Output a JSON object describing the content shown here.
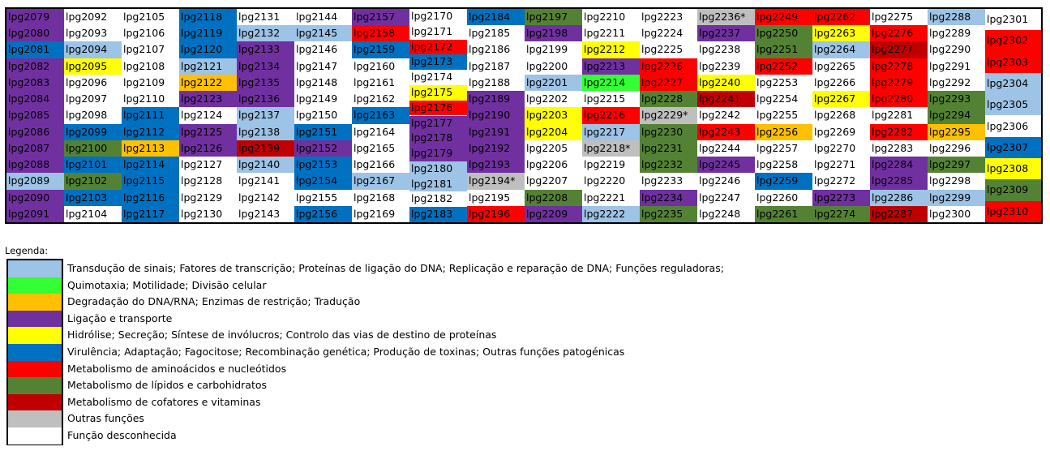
{
  "colors": {
    "sig": "#9dc3e6",
    "mot": "#33ff33",
    "deg": "#ffc000",
    "lig": "#7030a0",
    "hid": "#ffff00",
    "vir": "#0070c0",
    "ami": "#ff0000",
    "lip": "#548235",
    "cof": "#c00000",
    "out": "#bfbfbf",
    "des": "#ffffff"
  },
  "columns": [
    [
      [
        "lpg2079",
        "lig"
      ],
      [
        "lpg2080",
        "lig"
      ],
      [
        "lpg2081",
        "vir"
      ],
      [
        "lpg2082",
        "lig"
      ],
      [
        "lpg2083",
        "lig"
      ],
      [
        "lpg2084",
        "lig"
      ],
      [
        "lpg2085",
        "lig"
      ],
      [
        "lpg2086",
        "lig"
      ],
      [
        "lpg2087",
        "lig"
      ],
      [
        "lpg2088",
        "lig"
      ],
      [
        "lpg2089",
        "sig"
      ],
      [
        "lpg2090",
        "lig"
      ],
      [
        "lpg2091",
        "lig"
      ]
    ],
    [
      [
        "lpg2092",
        "des"
      ],
      [
        "lpg2093",
        "des"
      ],
      [
        "lpg2094",
        "sig"
      ],
      [
        "lpg2095",
        "hid"
      ],
      [
        "lpg2096",
        "des"
      ],
      [
        "lpg2097",
        "des"
      ],
      [
        "lpg2098",
        "des"
      ],
      [
        "lpg2099",
        "vir"
      ],
      [
        "lpg2100",
        "lip"
      ],
      [
        "lpg2101",
        "vir"
      ],
      [
        "lpg2102",
        "lip"
      ],
      [
        "lpg2103",
        "vir"
      ],
      [
        "lpg2104",
        "des"
      ]
    ],
    [
      [
        "lpg2105",
        "des"
      ],
      [
        "lpg2106",
        "des"
      ],
      [
        "lpg2107",
        "des"
      ],
      [
        "lpg2108",
        "des"
      ],
      [
        "lpg2109",
        "des"
      ],
      [
        "lpg2110",
        "des"
      ],
      [
        "lpg2111",
        "vir"
      ],
      [
        "lpg2112",
        "vir"
      ],
      [
        "lpg2113",
        "deg"
      ],
      [
        "lpg2114",
        "vir"
      ],
      [
        "lpg2115",
        "vir"
      ],
      [
        "lpg2116",
        "vir"
      ],
      [
        "lpg2117",
        "vir"
      ]
    ],
    [
      [
        "lpg2118",
        "vir"
      ],
      [
        "lpg2119",
        "vir"
      ],
      [
        "lpg2120",
        "vir"
      ],
      [
        "lpg2121",
        "sig"
      ],
      [
        "lpg2122",
        "deg"
      ],
      [
        "lpg2123",
        "lig"
      ],
      [
        "lpg2124",
        "des"
      ],
      [
        "lpg2125",
        "lig"
      ],
      [
        "lpg2126",
        "lig"
      ],
      [
        "lpg2127",
        "des"
      ],
      [
        "lpg2128",
        "des"
      ],
      [
        "lpg2129",
        "des"
      ],
      [
        "lpg2130",
        "des"
      ]
    ],
    [
      [
        "lpg2131",
        "des"
      ],
      [
        "lpg2132",
        "sig"
      ],
      [
        "lpg2133",
        "lig"
      ],
      [
        "lpg2134",
        "lig"
      ],
      [
        "lpg2135",
        "lig"
      ],
      [
        "lpg2136",
        "lig"
      ],
      [
        "lpg2137",
        "sig"
      ],
      [
        "lpg2138",
        "sig"
      ],
      [
        "lpg2139",
        "cof"
      ],
      [
        "lpg2140",
        "sig"
      ],
      [
        "lpg2141",
        "des"
      ],
      [
        "lpg2142",
        "des"
      ],
      [
        "lpg2143",
        "des"
      ]
    ],
    [
      [
        "lpg2144",
        "des"
      ],
      [
        "lpg2145",
        "sig"
      ],
      [
        "lpg2146",
        "des"
      ],
      [
        "lpg2147",
        "des"
      ],
      [
        "lpg2148",
        "des"
      ],
      [
        "lpg2149",
        "des"
      ],
      [
        "lpg2150",
        "des"
      ],
      [
        "lpg2151",
        "vir"
      ],
      [
        "lpg2152",
        "lig"
      ],
      [
        "lpg2153",
        "vir"
      ],
      [
        "lpg2154",
        "vir"
      ],
      [
        "lpg2155",
        "des"
      ],
      [
        "lpg2156",
        "vir"
      ]
    ],
    [
      [
        "lpg2157",
        "lig"
      ],
      [
        "lpg2158",
        "ami"
      ],
      [
        "lpg2159",
        "vir"
      ],
      [
        "lpg2160",
        "des"
      ],
      [
        "lpg2161",
        "des"
      ],
      [
        "lpg2162",
        "des"
      ],
      [
        "lpg2163",
        "vir"
      ],
      [
        "lpg2164",
        "des"
      ],
      [
        "lpg2165",
        "des"
      ],
      [
        "lpg2166",
        "des"
      ],
      [
        "lpg2167",
        "sig"
      ],
      [
        "lpg2168",
        "des"
      ],
      [
        "lpg2169",
        "des"
      ]
    ],
    [
      [
        "lpg2170",
        "des"
      ],
      [
        "lpg2171",
        "des"
      ],
      [
        "lpg2172",
        "ami"
      ],
      [
        "lpg2173",
        "vir"
      ],
      [
        "lpg2174",
        "des"
      ],
      [
        "lpg2175",
        "hid"
      ],
      [
        "lpg2176",
        "ami"
      ],
      [
        "lpg2177",
        "lig"
      ],
      [
        "lpg2178",
        "lig"
      ],
      [
        "lpg2179",
        "lig"
      ],
      [
        "lpg2180",
        "sig"
      ],
      [
        "lpg2181",
        "sig"
      ],
      [
        "lpg2182",
        "des"
      ],
      [
        "lpg2183",
        "vir"
      ]
    ],
    [
      [
        "lpg2184",
        "vir"
      ],
      [
        "lpg2185",
        "des"
      ],
      [
        "lpg2186",
        "des"
      ],
      [
        "lpg2187",
        "des"
      ],
      [
        "lpg2188",
        "des"
      ],
      [
        "lpg2189",
        "lig"
      ],
      [
        "lpg2190",
        "lig"
      ],
      [
        "lpg2191",
        "lig"
      ],
      [
        "lpg2192",
        "lig"
      ],
      [
        "lpg2193",
        "lig"
      ],
      [
        "lpg2194*",
        "out"
      ],
      [
        "lpg2195",
        "des"
      ],
      [
        "lpg2196",
        "ami"
      ]
    ],
    [
      [
        "lpg2197",
        "lip"
      ],
      [
        "lpg2198",
        "lig"
      ],
      [
        "lpg2199",
        "des"
      ],
      [
        "lpg2200",
        "des"
      ],
      [
        "lpg2201",
        "sig"
      ],
      [
        "lpg2202",
        "des"
      ],
      [
        "lpg2203",
        "hid"
      ],
      [
        "lpg2204",
        "hid"
      ],
      [
        "lpg2205",
        "des"
      ],
      [
        "lpg2206",
        "des"
      ],
      [
        "lpg2207",
        "des"
      ],
      [
        "lpg2208",
        "lip"
      ],
      [
        "lpg2209",
        "lig"
      ]
    ],
    [
      [
        "lpg2210",
        "des"
      ],
      [
        "lpg2211",
        "des"
      ],
      [
        "lpg2212",
        "hid"
      ],
      [
        "lpg2213",
        "lig"
      ],
      [
        "lpg2214",
        "mot"
      ],
      [
        "lpg2215",
        "des"
      ],
      [
        "lpg2216",
        "ami"
      ],
      [
        "lpg2217",
        "sig"
      ],
      [
        "lpg2218*",
        "out"
      ],
      [
        "lpg2219",
        "des"
      ],
      [
        "lpg2220",
        "des"
      ],
      [
        "lpg2221",
        "des"
      ],
      [
        "lpg2222",
        "sig"
      ]
    ],
    [
      [
        "lpg2223",
        "des"
      ],
      [
        "lpg2224",
        "des"
      ],
      [
        "lpg2225",
        "des"
      ],
      [
        "lpg2226",
        "ami"
      ],
      [
        "lpg2227",
        "ami"
      ],
      [
        "lpg2228",
        "lip"
      ],
      [
        "lpg2229*",
        "out"
      ],
      [
        "lpg2230",
        "lip"
      ],
      [
        "lpg2231",
        "lip"
      ],
      [
        "lpg2232",
        "lip"
      ],
      [
        "lpg2233",
        "des"
      ],
      [
        "lpg2234",
        "lig"
      ],
      [
        "lpg2235",
        "lip"
      ]
    ],
    [
      [
        "lpg2236*",
        "out"
      ],
      [
        "lpg2237",
        "lig"
      ],
      [
        "lpg2238",
        "des"
      ],
      [
        "lpg2239",
        "des"
      ],
      [
        "lpg2240",
        "hid"
      ],
      [
        "lpg2241",
        "cof"
      ],
      [
        "lpg2242",
        "des"
      ],
      [
        "lpg2243",
        "ami"
      ],
      [
        "lpg2244",
        "des"
      ],
      [
        "lpg2245",
        "lig"
      ],
      [
        "lpg2246",
        "des"
      ],
      [
        "lpg2247",
        "des"
      ],
      [
        "lpg2248",
        "des"
      ]
    ],
    [
      [
        "lpg2249",
        "ami"
      ],
      [
        "lpg2250",
        "lip"
      ],
      [
        "lpg2251",
        "lip"
      ],
      [
        "lpg2252",
        "ami"
      ],
      [
        "lpg2253",
        "des"
      ],
      [
        "lpg2254",
        "des"
      ],
      [
        "lpg2255",
        "des"
      ],
      [
        "lpg2256",
        "deg"
      ],
      [
        "lpg2257",
        "des"
      ],
      [
        "lpg2258",
        "des"
      ],
      [
        "lpg2259",
        "vir"
      ],
      [
        "lpg2260",
        "des"
      ],
      [
        "lpg2261",
        "lip"
      ]
    ],
    [
      [
        "lpg2262",
        "ami"
      ],
      [
        "lpg2263",
        "hid"
      ],
      [
        "lpg2264",
        "sig"
      ],
      [
        "lpg2265",
        "des"
      ],
      [
        "lpg2266",
        "des"
      ],
      [
        "lpg2267",
        "hid"
      ],
      [
        "lpg2268",
        "des"
      ],
      [
        "lpg2269",
        "des"
      ],
      [
        "lpg2270",
        "des"
      ],
      [
        "lpg2271",
        "des"
      ],
      [
        "lpg2272",
        "des"
      ],
      [
        "lpg2273",
        "lig"
      ],
      [
        "lpg2274",
        "lip"
      ]
    ],
    [
      [
        "lpg2275",
        "des"
      ],
      [
        "lpg2276",
        "ami"
      ],
      [
        "lpg2277",
        "cof"
      ],
      [
        "lpg2278",
        "ami"
      ],
      [
        "lpg2279",
        "ami"
      ],
      [
        "lpg2280",
        "ami"
      ],
      [
        "lpg2281",
        "des"
      ],
      [
        "lpg2282",
        "ami"
      ],
      [
        "lpg2283",
        "des"
      ],
      [
        "lpg2284",
        "lig"
      ],
      [
        "lpg2285",
        "lig"
      ],
      [
        "lpg2286",
        "sig"
      ],
      [
        "lpg2287",
        "cof"
      ]
    ],
    [
      [
        "lpg2288",
        "sig"
      ],
      [
        "lpg2289",
        "des"
      ],
      [
        "lpg2290",
        "des"
      ],
      [
        "lpg2291",
        "des"
      ],
      [
        "lpg2292",
        "des"
      ],
      [
        "lpg2293",
        "lip"
      ],
      [
        "lpg2294",
        "lip"
      ],
      [
        "lpg2295",
        "deg"
      ],
      [
        "lpg2296",
        "des"
      ],
      [
        "lpg2297",
        "lip"
      ],
      [
        "lpg2298",
        "des"
      ],
      [
        "lpg2299",
        "sig"
      ],
      [
        "lpg2300",
        "des"
      ]
    ],
    [
      [
        "lpg2301",
        "des"
      ],
      [
        "lpg2302",
        "ami"
      ],
      [
        "lpg2303",
        "ami"
      ],
      [
        "lpg2304",
        "sig"
      ],
      [
        "lpg2305",
        "sig"
      ],
      [
        "lpg2306",
        "des"
      ],
      [
        "lpg2307",
        "vir"
      ],
      [
        "lpg2308",
        "hid"
      ],
      [
        "lpg2309",
        "lip"
      ],
      [
        "lpg2310",
        "ami"
      ]
    ]
  ],
  "legend": {
    "title": "Legenda:",
    "items": [
      {
        "key": "sig",
        "label": "Transdução de sinais; Fatores de transcrição; Proteínas de ligação do DNA; Replicação e reparação de DNA; Funções reguladoras;"
      },
      {
        "key": "mot",
        "label": "Quimotaxia; Motilidade; Divisão celular"
      },
      {
        "key": "deg",
        "label": "Degradação do DNA/RNA; Enzimas de restrição; Tradução"
      },
      {
        "key": "lig",
        "label": "Ligação e transporte"
      },
      {
        "key": "hid",
        "label": "Hidrólise; Secreção; Síntese de invólucros; Controlo das vias de destino de proteínas"
      },
      {
        "key": "vir",
        "label": "Virulência; Adaptação; Fagocitose; Recombinação genética; Produção de toxinas; Outras funções patogénicas"
      },
      {
        "key": "ami",
        "label": "Metabolismo de aminoácidos e nucleótidos"
      },
      {
        "key": "lip",
        "label": "Metabolismo de lípidos e carbohidratos"
      },
      {
        "key": "cof",
        "label": "Metabolismo de cofatores e vitaminas"
      },
      {
        "key": "out",
        "label": "Outras funções"
      },
      {
        "key": "des",
        "label": "Função desconhecida"
      }
    ]
  }
}
